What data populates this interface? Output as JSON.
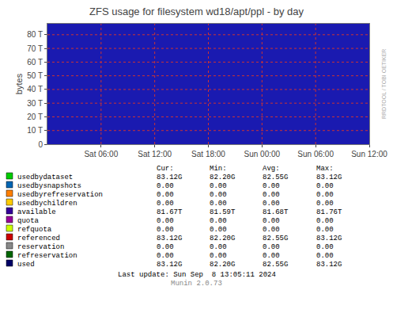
{
  "chart_data": {
    "type": "area",
    "title": "ZFS usage for filesystem wd18/apt/ppl - by day",
    "ylabel": "bytes",
    "x": [
      0,
      1,
      2,
      3,
      4,
      5,
      6,
      7,
      8,
      9,
      10,
      11,
      12,
      13,
      14,
      15,
      16,
      17,
      18,
      19,
      20,
      21,
      22,
      23,
      24,
      25,
      26,
      27,
      28,
      29,
      30
    ],
    "values": [
      88.0,
      88.0,
      88.0,
      88.0,
      88.0,
      88.0,
      88.0,
      88.0,
      88.0,
      88.0,
      88.0,
      88.0,
      88.0,
      88.0,
      88.0,
      88.0,
      88.0,
      88.0,
      88.0,
      88.0,
      88.0,
      88.0,
      88.0,
      88.0,
      88.0,
      88.0,
      88.0,
      88.0,
      88.0,
      88.0,
      88.0
    ],
    "color": "#1a1ab0",
    "xlim": [
      0,
      30
    ],
    "xticks": [
      {
        "value": 5,
        "label": "Sat 06:00"
      },
      {
        "value": 10,
        "label": "Sat 12:00"
      },
      {
        "value": 15,
        "label": "Sat 18:00"
      },
      {
        "value": 20,
        "label": "Sun 00:00"
      },
      {
        "value": 25,
        "label": "Sun 06:00"
      },
      {
        "value": 30,
        "label": "Sun 12:00"
      }
    ],
    "ylim": [
      0,
      88
    ],
    "yticks": [
      0,
      {
        "value": 10,
        "label": "10 T"
      },
      {
        "value": 20,
        "label": "20 T"
      },
      {
        "value": 30,
        "label": "30 T"
      },
      {
        "value": 40,
        "label": "40 T"
      },
      {
        "value": 50,
        "label": "50 T"
      },
      {
        "value": 60,
        "label": "60 T"
      },
      {
        "value": 70,
        "label": "70 T"
      },
      {
        "value": 80,
        "label": "80 T"
      }
    ],
    "grid": true,
    "annotations": [
      "RRDTOOL / TOBI OETIKER"
    ],
    "table": {
      "headers": [
        "Cur:",
        "Min:",
        "Avg:",
        "Max:"
      ],
      "rows": [
        {
          "label": "usedbydataset",
          "color": "#00cc00",
          "values": [
            "83.12G",
            "82.20G",
            "82.55G",
            "83.12G"
          ]
        },
        {
          "label": "usedbysnapshots",
          "color": "#0066b3",
          "values": [
            "0.00",
            "0.00",
            "0.00",
            "0.00"
          ]
        },
        {
          "label": "usedbyrefreservation",
          "color": "#ff8000",
          "values": [
            "0.00",
            "0.00",
            "0.00",
            "0.00"
          ]
        },
        {
          "label": "usedbychildren",
          "color": "#ffcc00",
          "values": [
            "0.00",
            "0.00",
            "0.00",
            "0.00"
          ]
        },
        {
          "label": "available",
          "color": "#330099",
          "values": [
            "81.67T",
            "81.59T",
            "81.68T",
            "81.76T"
          ]
        },
        {
          "label": "quota",
          "color": "#990099",
          "values": [
            "0.00",
            "0.00",
            "0.00",
            "0.00"
          ]
        },
        {
          "label": "refquota",
          "color": "#ccff00",
          "values": [
            "0.00",
            "0.00",
            "0.00",
            "0.00"
          ]
        },
        {
          "label": "referenced",
          "color": "#cc0000",
          "values": [
            "83.12G",
            "82.20G",
            "82.55G",
            "83.12G"
          ]
        },
        {
          "label": "reservation",
          "color": "#888888",
          "values": [
            "0.00",
            "0.00",
            "0.00",
            "0.00"
          ]
        },
        {
          "label": "refreservation",
          "color": "#006600",
          "values": [
            "0.00",
            "0.00",
            "0.00",
            "0.00"
          ]
        },
        {
          "label": "used",
          "color": "#000066",
          "values": [
            "83.12G",
            "82.20G",
            "82.55G",
            "83.12G"
          ]
        }
      ]
    },
    "footer": [
      "Last update: Sun Sep  8 13:05:11 2024",
      "Munin 2.0.73"
    ]
  }
}
